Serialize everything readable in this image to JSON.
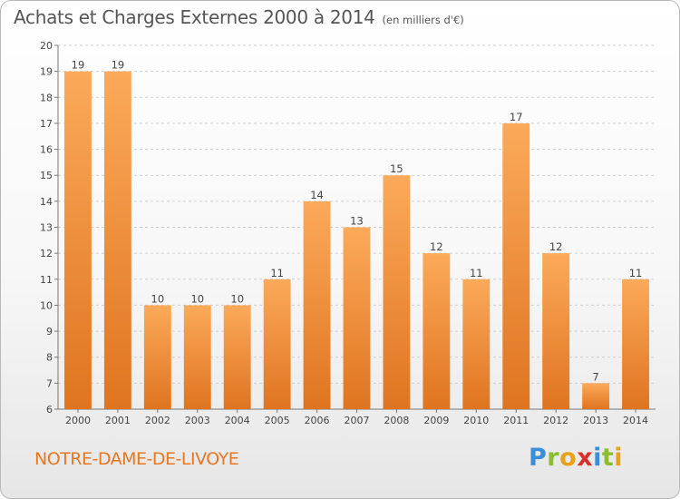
{
  "title": "Achats et Charges Externes 2000 à 2014",
  "subtitle": "(en milliers d'€)",
  "location": "NOTRE-DAME-DE-LIVOYE",
  "logo": {
    "letters": [
      "P",
      "r",
      "o",
      "x",
      "i",
      "t",
      "i"
    ]
  },
  "colors": {
    "bar_light": "#fbaa5a",
    "bar_dark": "#df7420",
    "location_text": "#e87722"
  },
  "chart_data": {
    "type": "bar",
    "title": "Achats et Charges Externes 2000 à 2014",
    "subtitle": "(en milliers d'€)",
    "xlabel": "",
    "ylabel": "",
    "categories": [
      "2000",
      "2001",
      "2002",
      "2003",
      "2004",
      "2005",
      "2006",
      "2007",
      "2008",
      "2009",
      "2010",
      "2011",
      "2012",
      "2013",
      "2014"
    ],
    "values": [
      19,
      19,
      10,
      10,
      10,
      11,
      14,
      13,
      15,
      12,
      11,
      17,
      12,
      7,
      11
    ],
    "ylim": [
      6,
      20
    ],
    "yticks": [
      6,
      7,
      8,
      9,
      10,
      11,
      12,
      13,
      14,
      15,
      16,
      17,
      18,
      19,
      20
    ],
    "grid": true,
    "data_labels": true
  }
}
